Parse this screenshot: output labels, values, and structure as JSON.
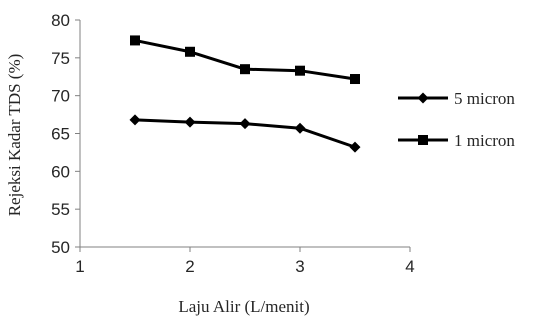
{
  "chart_data": {
    "type": "line",
    "title": "",
    "xlabel": "Laju Alir  (L/menit)",
    "ylabel": "Rejeksi Kadar TDS (%)",
    "xlim": [
      1,
      4
    ],
    "ylim": [
      50,
      80
    ],
    "xticks": [
      1,
      2,
      3,
      4
    ],
    "yticks": [
      50,
      55,
      60,
      65,
      70,
      75,
      80
    ],
    "grid": false,
    "legend_position": "right",
    "series": [
      {
        "name": "5 micron",
        "marker": "diamond",
        "color": "#000000",
        "x": [
          1.5,
          2.0,
          2.5,
          3.0,
          3.5
        ],
        "y": [
          66.8,
          66.5,
          66.3,
          65.7,
          63.2
        ]
      },
      {
        "name": "1 micron",
        "marker": "square",
        "color": "#000000",
        "x": [
          1.5,
          2.0,
          2.5,
          3.0,
          3.5
        ],
        "y": [
          77.3,
          75.8,
          73.5,
          73.3,
          72.2
        ]
      }
    ]
  }
}
